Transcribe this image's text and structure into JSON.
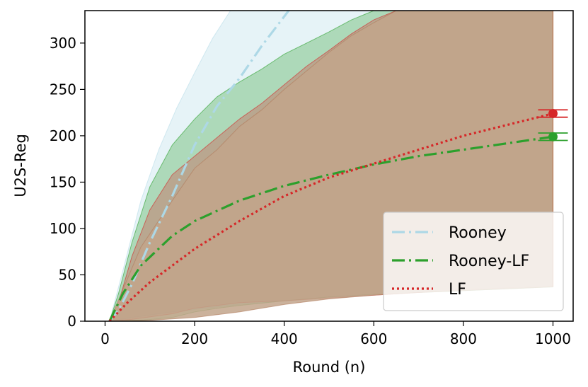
{
  "chart_data": {
    "type": "line",
    "title": "",
    "xlabel": "Round (n)",
    "ylabel": "U2S-Reg",
    "xlim": [
      -45,
      1045
    ],
    "ylim": [
      0,
      335
    ],
    "xticks": [
      0,
      200,
      400,
      600,
      800,
      1000
    ],
    "yticks": [
      0,
      50,
      100,
      150,
      200,
      250,
      300
    ],
    "grid": false,
    "legend_position": "lower-right",
    "series": [
      {
        "name": "Rooney",
        "color": "#add8e6",
        "linestyle": "dashdot",
        "points": [
          [
            10,
            0
          ],
          [
            30,
            12
          ],
          [
            60,
            40
          ],
          [
            100,
            85
          ],
          [
            150,
            135
          ],
          [
            200,
            190
          ],
          [
            250,
            232
          ],
          [
            300,
            262
          ],
          [
            350,
            297
          ],
          [
            410,
            335
          ]
        ],
        "band_upper": [
          [
            10,
            0
          ],
          [
            40,
            55
          ],
          [
            80,
            130
          ],
          [
            120,
            185
          ],
          [
            160,
            230
          ],
          [
            200,
            268
          ],
          [
            240,
            305
          ],
          [
            280,
            335
          ],
          [
            1000,
            335
          ]
        ],
        "band_lower": [
          [
            10,
            0
          ],
          [
            60,
            4
          ],
          [
            150,
            10
          ],
          [
            300,
            18
          ],
          [
            500,
            26
          ],
          [
            700,
            31
          ],
          [
            900,
            35
          ],
          [
            1000,
            38
          ]
        ]
      },
      {
        "name": "Rooney-LF",
        "color": "#2ca02c",
        "linestyle": "dashdot",
        "points": [
          [
            10,
            0
          ],
          [
            40,
            30
          ],
          [
            80,
            60
          ],
          [
            150,
            92
          ],
          [
            200,
            108
          ],
          [
            300,
            130
          ],
          [
            400,
            146
          ],
          [
            500,
            158
          ],
          [
            600,
            169
          ],
          [
            700,
            178
          ],
          [
            800,
            185
          ],
          [
            900,
            192
          ],
          [
            1000,
            199
          ]
        ],
        "band_upper": [
          [
            10,
            0
          ],
          [
            30,
            30
          ],
          [
            60,
            85
          ],
          [
            100,
            145
          ],
          [
            150,
            190
          ],
          [
            200,
            218
          ],
          [
            250,
            242
          ],
          [
            300,
            258
          ],
          [
            350,
            272
          ],
          [
            400,
            288
          ],
          [
            450,
            300
          ],
          [
            500,
            312
          ],
          [
            550,
            325
          ],
          [
            600,
            335
          ],
          [
            1000,
            335
          ]
        ],
        "band_lower": [
          [
            10,
            0
          ],
          [
            80,
            1
          ],
          [
            150,
            4
          ],
          [
            200,
            10
          ],
          [
            250,
            14
          ],
          [
            300,
            17
          ],
          [
            400,
            22
          ],
          [
            500,
            26
          ],
          [
            600,
            29
          ],
          [
            700,
            31
          ],
          [
            800,
            33
          ],
          [
            900,
            35
          ],
          [
            1000,
            37
          ]
        ],
        "endpoint": {
          "x": 1000,
          "y": 199,
          "err": 4
        }
      },
      {
        "name": "LF",
        "color": "#d62728",
        "linestyle": "dotted",
        "points": [
          [
            10,
            0
          ],
          [
            50,
            20
          ],
          [
            100,
            42
          ],
          [
            200,
            78
          ],
          [
            300,
            108
          ],
          [
            400,
            135
          ],
          [
            500,
            155
          ],
          [
            600,
            170
          ],
          [
            700,
            185
          ],
          [
            800,
            200
          ],
          [
            900,
            212
          ],
          [
            1000,
            224
          ]
        ],
        "band_upper": [
          [
            10,
            0
          ],
          [
            30,
            20
          ],
          [
            60,
            70
          ],
          [
            100,
            120
          ],
          [
            150,
            158
          ],
          [
            200,
            178
          ],
          [
            250,
            198
          ],
          [
            300,
            218
          ],
          [
            350,
            235
          ],
          [
            400,
            255
          ],
          [
            450,
            275
          ],
          [
            500,
            292
          ],
          [
            550,
            310
          ],
          [
            600,
            325
          ],
          [
            650,
            335
          ],
          [
            1000,
            335
          ]
        ],
        "band_lower": [
          [
            10,
            0
          ],
          [
            60,
            2
          ],
          [
            150,
            8
          ],
          [
            200,
            14
          ],
          [
            250,
            17
          ],
          [
            300,
            20
          ],
          [
            400,
            22
          ],
          [
            500,
            25
          ],
          [
            600,
            28
          ],
          [
            700,
            31
          ],
          [
            800,
            34
          ],
          [
            900,
            36
          ],
          [
            1000,
            38
          ]
        ],
        "endpoint": {
          "x": 1000,
          "y": 224,
          "err": 4
        }
      }
    ],
    "overlap_band": {
      "color": "#c2a58b",
      "upper": [
        [
          10,
          0
        ],
        [
          80,
          80
        ],
        [
          150,
          130
        ],
        [
          200,
          165
        ],
        [
          250,
          185
        ],
        [
          300,
          210
        ],
        [
          350,
          228
        ],
        [
          400,
          250
        ],
        [
          450,
          270
        ],
        [
          500,
          290
        ],
        [
          550,
          308
        ],
        [
          600,
          322
        ],
        [
          650,
          335
        ],
        [
          1000,
          335
        ]
      ],
      "lower": [
        [
          10,
          0
        ],
        [
          100,
          1
        ],
        [
          200,
          4
        ],
        [
          300,
          10
        ],
        [
          400,
          18
        ],
        [
          500,
          24
        ],
        [
          600,
          28
        ],
        [
          700,
          31
        ],
        [
          800,
          33
        ],
        [
          900,
          35
        ],
        [
          1000,
          37
        ]
      ]
    }
  }
}
